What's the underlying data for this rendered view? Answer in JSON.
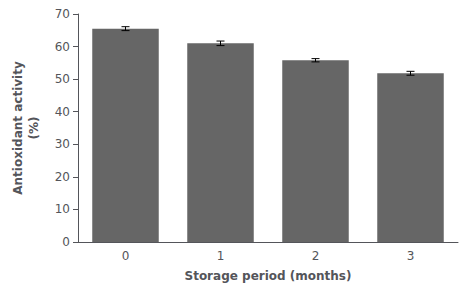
{
  "chart_data": {
    "type": "bar",
    "categories": [
      "0",
      "1",
      "2",
      "3"
    ],
    "values": [
      65.5,
      61.0,
      55.8,
      51.8
    ],
    "errors": [
      0.6,
      0.7,
      0.5,
      0.6
    ],
    "color": "#666666",
    "xlabel": "Storage period (months)",
    "ylabel": "Antioxidant activity\n(%)",
    "ylim": [
      0,
      70
    ],
    "yticks": [
      0,
      10,
      20,
      30,
      40,
      50,
      60,
      70
    ],
    "grid": false
  }
}
